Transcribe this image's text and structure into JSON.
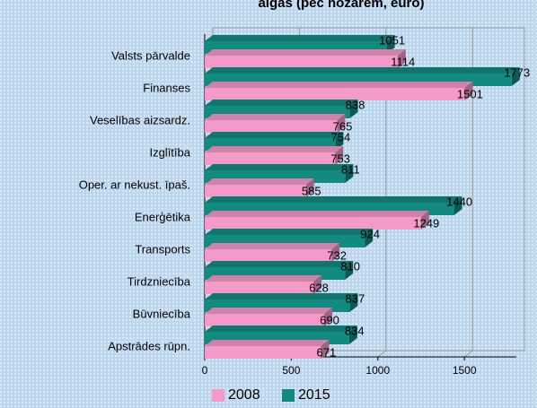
{
  "chart_data": {
    "type": "bar",
    "orientation": "horizontal",
    "title": "algas (pēc nozarēm, euro)",
    "categories": [
      "Valsts pārvalde",
      "Finanses",
      "Veselības aizsardz.",
      "Izglītība",
      "Oper. ar nekust. īpaš.",
      "Enerģētika",
      "Transports",
      "Tirdzniecība",
      "Būvniecība",
      "Apstrādes rūpn."
    ],
    "series": [
      {
        "name": "2008",
        "color": "#f49ac8",
        "values": [
          1114,
          1501,
          765,
          753,
          585,
          1249,
          732,
          628,
          690,
          671
        ]
      },
      {
        "name": "2015",
        "color": "#138a80",
        "values": [
          1051,
          1773,
          838,
          754,
          811,
          1440,
          924,
          810,
          837,
          834
        ]
      }
    ],
    "xlim": [
      0,
      1800
    ],
    "xticks": [
      0,
      500,
      1000,
      1500
    ],
    "grid": true,
    "legend": "bottom"
  }
}
